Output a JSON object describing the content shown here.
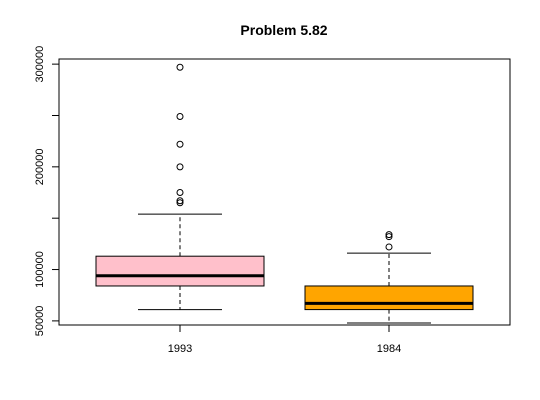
{
  "chart_data": {
    "type": "boxplot",
    "title": "Problem 5.82",
    "xlabel": "",
    "ylabel": "",
    "ylim": [
      46000,
      305000
    ],
    "yticks": [
      50000,
      100000,
      200000,
      300000
    ],
    "ytick_labels": [
      "50000",
      "100000",
      "200000",
      "300000"
    ],
    "minor_yticks": [
      150000,
      250000
    ],
    "grid": false,
    "categories": [
      "1993",
      "1984"
    ],
    "boxes": [
      {
        "label": "1993",
        "whisker_low": 61000,
        "q1": 84000,
        "median": 94000,
        "q3": 113000,
        "whisker_high": 154000,
        "outliers": [
          165000,
          167000,
          175000,
          200000,
          222000,
          249000,
          297000
        ],
        "color": "#FFC0CB"
      },
      {
        "label": "1984",
        "whisker_low": 48000,
        "q1": 61000,
        "median": 67000,
        "q3": 84000,
        "whisker_high": 116000,
        "outliers": [
          122000,
          132000,
          134000
        ],
        "color": "#FFA500"
      }
    ]
  }
}
